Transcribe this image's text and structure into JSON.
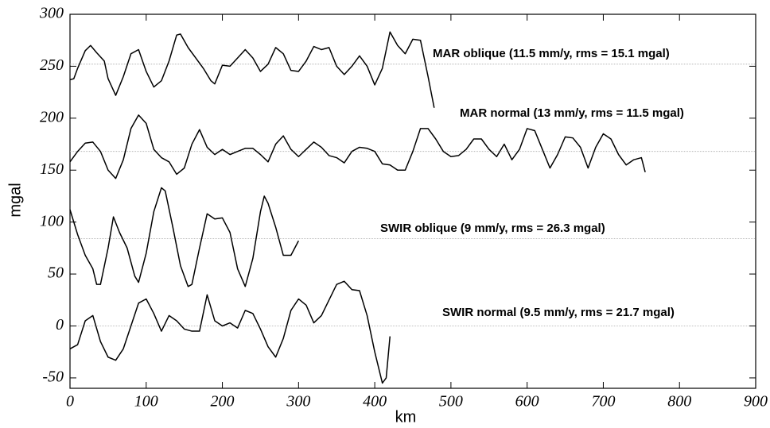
{
  "chart_data": {
    "type": "line",
    "x_label": "km",
    "y_label": "mgal",
    "xlim": [
      0,
      900
    ],
    "xticks": [
      0,
      100,
      200,
      300,
      400,
      500,
      600,
      700,
      800,
      900
    ],
    "ylim": [
      -60,
      300
    ],
    "yticks": [
      -50,
      0,
      50,
      100,
      150,
      200,
      250,
      300
    ],
    "reference_lines": [
      252,
      168,
      84,
      0
    ],
    "annotations": [
      "MAR oblique (11.5 mm/y, rms = 15.1 mgal)",
      "MAR normal (13 mm/y, rms = 11.5 mgal)",
      "SWIR oblique (9 mm/y, rms = 26.3 mgal)",
      "SWIR normal (9.5 mm/y, rms = 21.7 mgal)"
    ],
    "series": [
      {
        "color": "#000000",
        "x": [
          0,
          5,
          10,
          20,
          27,
          35,
          45,
          50,
          60,
          70,
          80,
          90,
          100,
          110,
          120,
          130,
          140,
          145,
          155,
          165,
          175,
          185,
          190,
          200,
          210,
          220,
          230,
          240,
          250,
          260,
          270,
          280,
          290,
          300,
          310,
          320,
          330,
          340,
          350,
          360,
          370,
          380,
          390,
          400,
          410,
          420,
          430,
          440,
          450,
          460,
          470,
          478
        ],
        "values": [
          237,
          238,
          248,
          265,
          270,
          263,
          255,
          238,
          222,
          240,
          262,
          266,
          245,
          230,
          236,
          255,
          280,
          281,
          268,
          258,
          248,
          236,
          233,
          251,
          250,
          258,
          266,
          258,
          245,
          252,
          268,
          262,
          246,
          245,
          255,
          269,
          266,
          268,
          250,
          242,
          250,
          260,
          250,
          232,
          248,
          283,
          270,
          262,
          276,
          275,
          240,
          210
        ]
      },
      {
        "color": "#000000",
        "x": [
          0,
          10,
          20,
          30,
          40,
          50,
          60,
          70,
          80,
          90,
          100,
          110,
          120,
          130,
          140,
          150,
          160,
          170,
          180,
          190,
          200,
          210,
          220,
          230,
          240,
          250,
          260,
          270,
          280,
          290,
          300,
          310,
          320,
          330,
          340,
          350,
          360,
          370,
          380,
          390,
          400,
          410,
          420,
          430,
          440,
          450,
          460,
          470,
          480,
          490,
          500,
          510,
          520,
          530,
          540,
          550,
          560,
          570,
          580,
          590,
          600,
          610,
          620,
          630,
          640,
          650,
          660,
          670,
          680,
          690,
          700,
          710,
          720,
          730,
          740,
          750,
          755
        ],
        "values": [
          158,
          168,
          176,
          177,
          168,
          150,
          142,
          160,
          190,
          203,
          195,
          170,
          162,
          158,
          146,
          152,
          175,
          189,
          172,
          165,
          170,
          165,
          168,
          171,
          171,
          165,
          158,
          175,
          183,
          170,
          163,
          170,
          177,
          172,
          164,
          162,
          157,
          168,
          172,
          171,
          168,
          156,
          155,
          150,
          150,
          168,
          190,
          190,
          180,
          168,
          163,
          164,
          170,
          180,
          180,
          170,
          163,
          175,
          160,
          170,
          190,
          188,
          170,
          152,
          165,
          182,
          181,
          172,
          152,
          172,
          185,
          180,
          165,
          155,
          160,
          162,
          148
        ]
      },
      {
        "color": "#000000",
        "x": [
          0,
          10,
          20,
          30,
          35,
          40,
          50,
          57,
          65,
          75,
          85,
          90,
          100,
          110,
          120,
          125,
          135,
          145,
          155,
          160,
          170,
          180,
          190,
          200,
          210,
          220,
          230,
          240,
          250,
          255,
          260,
          270,
          280,
          290,
          300
        ],
        "values": [
          112,
          88,
          68,
          55,
          40,
          40,
          75,
          105,
          90,
          75,
          48,
          42,
          70,
          110,
          133,
          130,
          95,
          58,
          38,
          40,
          75,
          108,
          103,
          104,
          90,
          55,
          38,
          65,
          110,
          125,
          118,
          95,
          68,
          68,
          82
        ]
      },
      {
        "color": "#000000",
        "x": [
          0,
          10,
          20,
          30,
          40,
          50,
          60,
          70,
          80,
          90,
          100,
          110,
          120,
          130,
          140,
          150,
          160,
          170,
          180,
          190,
          200,
          210,
          220,
          230,
          240,
          250,
          260,
          270,
          280,
          290,
          300,
          310,
          320,
          330,
          340,
          350,
          360,
          370,
          380,
          390,
          400,
          410,
          415,
          420
        ],
        "values": [
          -22,
          -18,
          5,
          10,
          -15,
          -30,
          -33,
          -22,
          0,
          22,
          26,
          12,
          -5,
          10,
          5,
          -3,
          -5,
          -5,
          30,
          5,
          0,
          3,
          -2,
          15,
          12,
          -3,
          -20,
          -30,
          -12,
          15,
          26,
          20,
          3,
          10,
          25,
          40,
          43,
          35,
          34,
          10,
          -25,
          -55,
          -50,
          -10
        ]
      }
    ]
  }
}
